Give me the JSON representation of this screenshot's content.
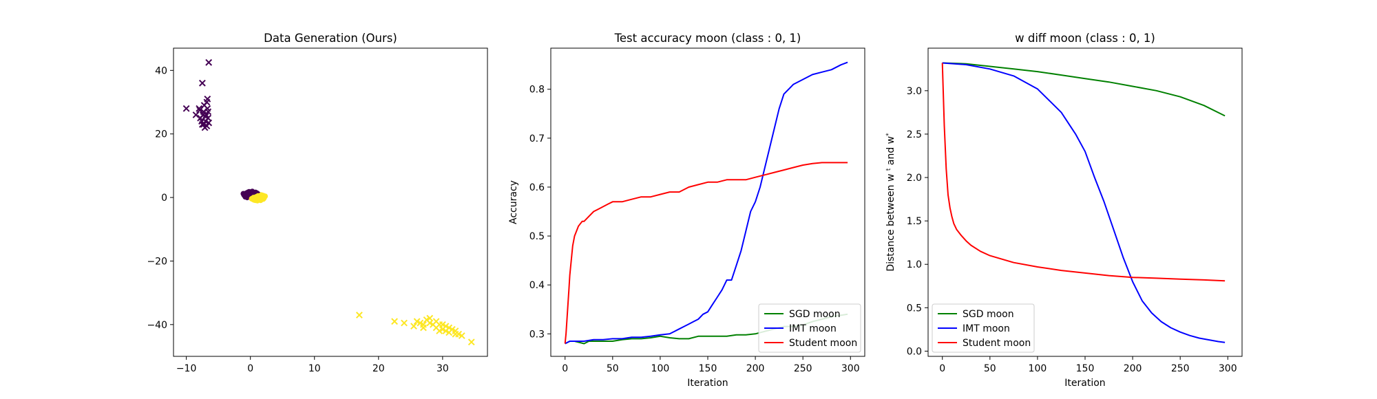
{
  "chart_data": [
    {
      "type": "scatter",
      "title": "Data Generation (Ours)",
      "xlabel": "",
      "ylabel": "",
      "xlim": [
        -12,
        37
      ],
      "ylim": [
        -50,
        47
      ],
      "xticks": [
        -10,
        0,
        10,
        20,
        30
      ],
      "yticks": [
        -40,
        -20,
        0,
        20,
        40
      ],
      "colors": {
        "class0": "#440154",
        "class1": "#fde725"
      },
      "series": [
        {
          "class": 0,
          "marker": "circle",
          "points": [
            [
              -1.0,
              0.8
            ],
            [
              -0.6,
              1.4
            ],
            [
              -0.2,
              1.8
            ],
            [
              0.3,
              1.9
            ],
            [
              0.8,
              1.6
            ],
            [
              1.2,
              1.1
            ],
            [
              -0.8,
              0.2
            ],
            [
              -0.3,
              0.5
            ],
            [
              0.2,
              0.9
            ],
            [
              0.6,
              0.6
            ],
            [
              -1.1,
              1.2
            ],
            [
              0.0,
              1.3
            ],
            [
              -0.5,
              0.0
            ],
            [
              0.9,
              0.3
            ],
            [
              -0.2,
              1.1
            ],
            [
              0.4,
              1.5
            ],
            [
              -0.9,
              0.6
            ],
            [
              1.0,
              1.4
            ],
            [
              -0.4,
              1.6
            ],
            [
              0.1,
              0.2
            ]
          ]
        },
        {
          "class": 1,
          "marker": "circle",
          "points": [
            [
              0.2,
              -0.4
            ],
            [
              0.6,
              -0.8
            ],
            [
              1.1,
              -1.0
            ],
            [
              1.6,
              -0.9
            ],
            [
              2.0,
              -0.5
            ],
            [
              2.2,
              0.1
            ],
            [
              2.0,
              0.6
            ],
            [
              1.5,
              0.3
            ],
            [
              1.0,
              -0.2
            ],
            [
              0.5,
              0.0
            ],
            [
              1.3,
              -0.6
            ],
            [
              1.8,
              -0.2
            ],
            [
              0.8,
              -0.9
            ],
            [
              2.3,
              0.4
            ],
            [
              1.2,
              0.5
            ],
            [
              0.4,
              -0.6
            ],
            [
              1.7,
              0.8
            ],
            [
              2.1,
              -0.3
            ],
            [
              0.9,
              0.2
            ],
            [
              1.4,
              -0.3
            ]
          ]
        },
        {
          "class": 0,
          "marker": "x",
          "points": [
            [
              -10.0,
              28
            ],
            [
              -7.5,
              36
            ],
            [
              -6.5,
              42.5
            ],
            [
              -6.7,
              31
            ],
            [
              -8.5,
              26
            ],
            [
              -8.0,
              28
            ],
            [
              -7.8,
              25
            ],
            [
              -7.5,
              23
            ],
            [
              -7.3,
              27
            ],
            [
              -7.0,
              24
            ],
            [
              -6.8,
              22.5
            ],
            [
              -7.2,
              29
            ],
            [
              -6.9,
              26
            ],
            [
              -6.6,
              25
            ],
            [
              -7.6,
              24
            ],
            [
              -7.1,
              22
            ],
            [
              -6.7,
              28
            ],
            [
              -7.4,
              26
            ],
            [
              -6.5,
              23.5
            ],
            [
              -7.9,
              27.5
            ],
            [
              -6.8,
              30
            ],
            [
              -7.0,
              25.5
            ],
            [
              -7.3,
              23
            ],
            [
              -6.6,
              27
            ]
          ]
        },
        {
          "class": 1,
          "marker": "x",
          "points": [
            [
              17,
              -37
            ],
            [
              22.5,
              -39
            ],
            [
              24,
              -39.5
            ],
            [
              25.5,
              -40.5
            ],
            [
              26,
              -39
            ],
            [
              27,
              -40
            ],
            [
              27.5,
              -38.5
            ],
            [
              28,
              -39.5
            ],
            [
              28.5,
              -40
            ],
            [
              29,
              -41
            ],
            [
              29.5,
              -40
            ],
            [
              30,
              -41.5
            ],
            [
              30.5,
              -42
            ],
            [
              31,
              -42.5
            ],
            [
              31.5,
              -41.5
            ],
            [
              32,
              -43
            ],
            [
              32.5,
              -43
            ],
            [
              33,
              -43.5
            ],
            [
              34.5,
              -45.5
            ],
            [
              28,
              -38
            ],
            [
              29,
              -39
            ],
            [
              30,
              -40
            ],
            [
              31,
              -41
            ],
            [
              27,
              -41
            ],
            [
              26.5,
              -39.5
            ],
            [
              30.5,
              -40.5
            ],
            [
              32,
              -42
            ],
            [
              29.5,
              -42
            ]
          ]
        }
      ]
    },
    {
      "type": "line",
      "title": "Test accuracy moon (class : 0, 1)",
      "xlabel": "Iteration",
      "ylabel": "Accuracy",
      "xlim": [
        -15,
        315
      ],
      "ylim": [
        0.254,
        0.884
      ],
      "xticks": [
        0,
        50,
        100,
        150,
        200,
        250,
        300
      ],
      "yticks": [
        0.3,
        0.4,
        0.5,
        0.6,
        0.7,
        0.8
      ],
      "legend": "lower-right",
      "series": [
        {
          "name": "SGD moon",
          "color": "#008000",
          "x": [
            0,
            5,
            10,
            20,
            25,
            30,
            40,
            50,
            60,
            70,
            80,
            90,
            100,
            110,
            120,
            130,
            140,
            150,
            160,
            170,
            180,
            190,
            200,
            210,
            220,
            230,
            240,
            250,
            260,
            270,
            280,
            290,
            297
          ],
          "y": [
            0.28,
            0.285,
            0.285,
            0.28,
            0.285,
            0.285,
            0.285,
            0.285,
            0.288,
            0.29,
            0.29,
            0.292,
            0.295,
            0.292,
            0.29,
            0.29,
            0.295,
            0.295,
            0.295,
            0.295,
            0.298,
            0.298,
            0.3,
            0.305,
            0.31,
            0.315,
            0.315,
            0.318,
            0.325,
            0.33,
            0.335,
            0.338,
            0.34
          ]
        },
        {
          "name": "IMT moon",
          "color": "#0000ff",
          "x": [
            0,
            5,
            10,
            20,
            30,
            40,
            50,
            60,
            70,
            80,
            90,
            100,
            110,
            115,
            120,
            125,
            130,
            135,
            140,
            145,
            150,
            155,
            160,
            165,
            170,
            175,
            180,
            185,
            190,
            195,
            200,
            205,
            210,
            215,
            220,
            225,
            230,
            235,
            240,
            250,
            260,
            270,
            280,
            290,
            297
          ],
          "y": [
            0.28,
            0.285,
            0.285,
            0.285,
            0.288,
            0.288,
            0.29,
            0.29,
            0.293,
            0.293,
            0.295,
            0.298,
            0.3,
            0.305,
            0.31,
            0.315,
            0.32,
            0.325,
            0.33,
            0.34,
            0.345,
            0.36,
            0.375,
            0.39,
            0.41,
            0.41,
            0.44,
            0.47,
            0.51,
            0.55,
            0.57,
            0.6,
            0.64,
            0.68,
            0.72,
            0.76,
            0.79,
            0.8,
            0.81,
            0.82,
            0.83,
            0.835,
            0.84,
            0.85,
            0.855
          ]
        },
        {
          "name": "Student moon",
          "color": "#ff0000",
          "x": [
            0,
            1,
            2,
            3,
            4,
            5,
            6,
            7,
            8,
            10,
            12,
            14,
            16,
            18,
            20,
            25,
            30,
            35,
            40,
            45,
            50,
            55,
            60,
            70,
            80,
            90,
            100,
            110,
            120,
            130,
            140,
            150,
            160,
            170,
            180,
            190,
            200,
            210,
            220,
            230,
            240,
            250,
            260,
            270,
            280,
            290,
            297
          ],
          "y": [
            0.28,
            0.3,
            0.33,
            0.36,
            0.39,
            0.42,
            0.44,
            0.46,
            0.48,
            0.5,
            0.51,
            0.52,
            0.525,
            0.53,
            0.53,
            0.54,
            0.55,
            0.555,
            0.56,
            0.565,
            0.57,
            0.57,
            0.57,
            0.575,
            0.58,
            0.58,
            0.585,
            0.59,
            0.59,
            0.6,
            0.605,
            0.61,
            0.61,
            0.615,
            0.615,
            0.615,
            0.62,
            0.625,
            0.63,
            0.635,
            0.64,
            0.645,
            0.648,
            0.65,
            0.65,
            0.65,
            0.65
          ]
        }
      ]
    },
    {
      "type": "line",
      "title": "w diff moon (class : 0, 1)",
      "xlabel": "Iteration",
      "ylabel": "Distance between w",
      "xlim": [
        -15,
        315
      ],
      "ylim": [
        -0.06,
        3.49
      ],
      "xticks": [
        0,
        50,
        100,
        150,
        200,
        250,
        300
      ],
      "yticks": [
        0.0,
        0.5,
        1.0,
        1.5,
        2.0,
        2.5,
        3.0
      ],
      "legend": "lower-left",
      "series": [
        {
          "name": "SGD moon",
          "color": "#008000",
          "x": [
            0,
            25,
            50,
            75,
            100,
            125,
            150,
            175,
            200,
            225,
            250,
            275,
            297
          ],
          "y": [
            3.32,
            3.31,
            3.28,
            3.25,
            3.22,
            3.18,
            3.14,
            3.1,
            3.05,
            3.0,
            2.93,
            2.83,
            2.71
          ]
        },
        {
          "name": "IMT moon",
          "color": "#0000ff",
          "x": [
            0,
            25,
            50,
            75,
            100,
            125,
            140,
            150,
            160,
            170,
            180,
            190,
            200,
            210,
            220,
            230,
            240,
            250,
            260,
            270,
            280,
            290,
            297
          ],
          "y": [
            3.32,
            3.3,
            3.25,
            3.17,
            3.02,
            2.75,
            2.5,
            2.3,
            2.0,
            1.72,
            1.4,
            1.08,
            0.8,
            0.58,
            0.44,
            0.34,
            0.27,
            0.22,
            0.18,
            0.15,
            0.13,
            0.11,
            0.1
          ]
        },
        {
          "name": "Student moon",
          "color": "#ff0000",
          "x": [
            0,
            2,
            4,
            6,
            8,
            10,
            12,
            15,
            20,
            25,
            30,
            40,
            50,
            75,
            100,
            125,
            150,
            175,
            200,
            225,
            250,
            275,
            297
          ],
          "y": [
            3.32,
            2.6,
            2.1,
            1.8,
            1.65,
            1.55,
            1.47,
            1.4,
            1.33,
            1.27,
            1.22,
            1.15,
            1.1,
            1.02,
            0.97,
            0.93,
            0.9,
            0.87,
            0.85,
            0.84,
            0.83,
            0.82,
            0.81
          ]
        }
      ]
    }
  ]
}
